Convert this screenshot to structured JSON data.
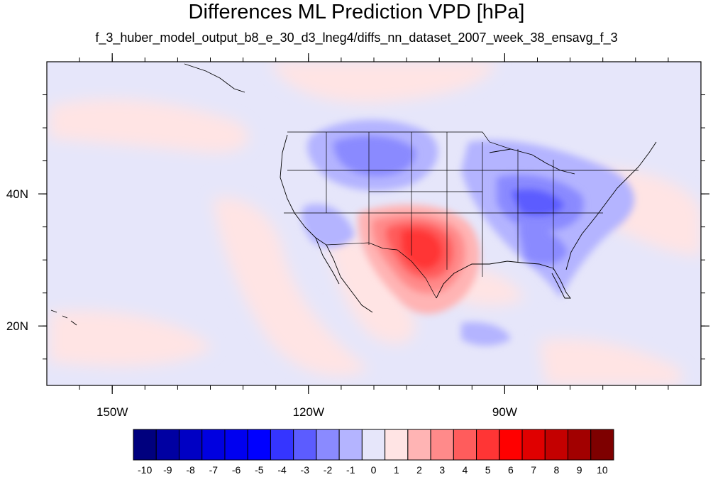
{
  "title": "Differences ML Prediction VPD [hPa]",
  "subtitle": "f_3_huber_model_output_b8_e_30_d3_lneg4/diffs_nn_dataset_2007_week_38_ensavg_f_3",
  "map": {
    "lon_range": [
      -160,
      -60
    ],
    "lat_range": [
      11,
      60
    ],
    "lon_ticks": [
      {
        "value": -150,
        "label": "150W"
      },
      {
        "value": -120,
        "label": "120W"
      },
      {
        "value": -90,
        "label": "90W"
      }
    ],
    "lat_ticks": [
      {
        "value": 40,
        "label": "40N"
      },
      {
        "value": 20,
        "label": "20N"
      }
    ],
    "background_color": "#e6e6fa",
    "border_color": "#000000"
  },
  "colorbar": {
    "labels": [
      "-10",
      "-9",
      "-8",
      "-7",
      "-6",
      "-5",
      "-4",
      "-3",
      "-2",
      "-1",
      "0",
      "1",
      "2",
      "3",
      "4",
      "5",
      "6",
      "7",
      "8",
      "9",
      "10"
    ],
    "colors": [
      "#00007e",
      "#0000a2",
      "#0000c4",
      "#0000e0",
      "#0000f0",
      "#0000ff",
      "#3535ff",
      "#5c5cff",
      "#8a8aff",
      "#b4b4ff",
      "#e6e6fa",
      "#ffe4e4",
      "#ffb4b4",
      "#ff8a8a",
      "#ff5c5c",
      "#ff3535",
      "#ff0000",
      "#e00000",
      "#c40000",
      "#a20000",
      "#7e0000"
    ]
  }
}
